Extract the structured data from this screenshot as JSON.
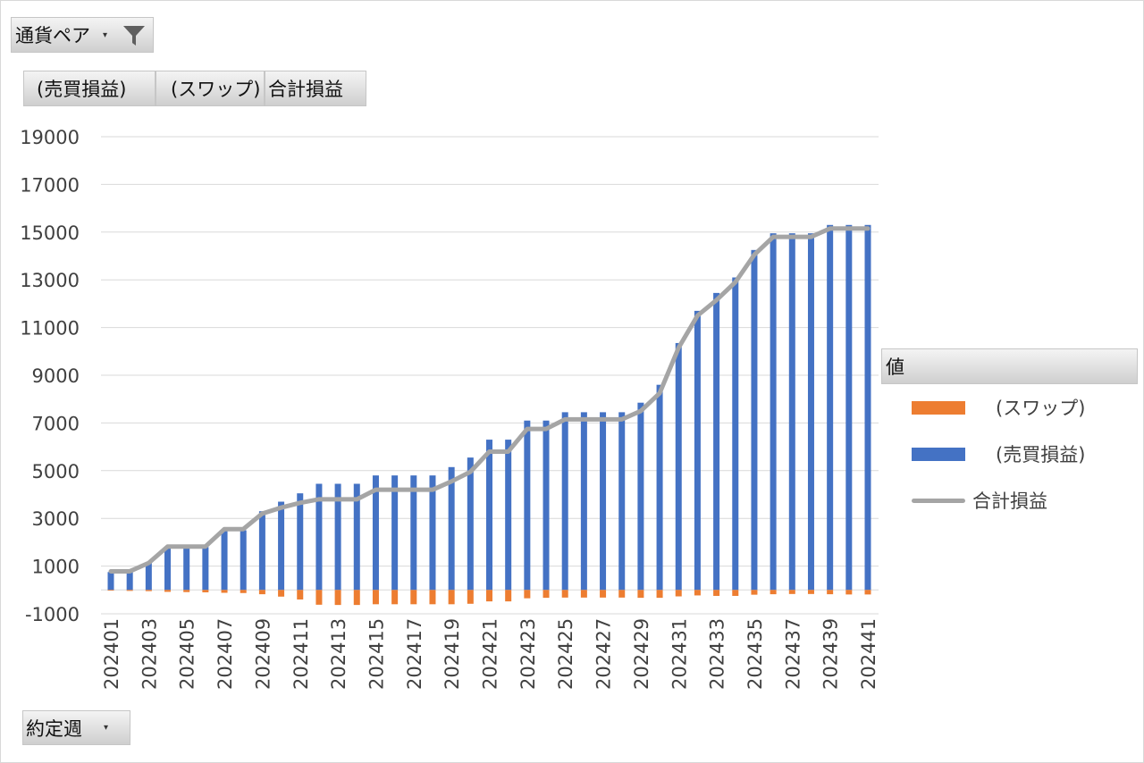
{
  "filter": {
    "label": "通貨ペア"
  },
  "column_fields": [
    "(売買損益)",
    "(スワップ)",
    "合計損益"
  ],
  "axis_field": {
    "label": "約定週"
  },
  "legend": {
    "title": "値",
    "items": [
      {
        "label": "(スワップ)",
        "color": "#ed7d31",
        "kind": "bar"
      },
      {
        "label": "(売買損益)",
        "color": "#4472c4",
        "kind": "bar"
      },
      {
        "label": "合計損益",
        "color": "#a5a5a5",
        "kind": "line"
      }
    ]
  },
  "chart_data": {
    "type": "bar",
    "stacked": true,
    "ylim": [
      -1000,
      19000
    ],
    "yticks": [
      -1000,
      1000,
      3000,
      5000,
      7000,
      9000,
      11000,
      13000,
      15000,
      17000,
      19000
    ],
    "categories": [
      "202401",
      "202402",
      "202403",
      "202404",
      "202405",
      "202406",
      "202407",
      "202408",
      "202409",
      "202410",
      "202411",
      "202412",
      "202413",
      "202414",
      "202415",
      "202416",
      "202417",
      "202418",
      "202419",
      "202420",
      "202421",
      "202422",
      "202423",
      "202424",
      "202425",
      "202426",
      "202427",
      "202428",
      "202429",
      "202430",
      "202431",
      "202432",
      "202433",
      "202434",
      "202435",
      "202436",
      "202437",
      "202438",
      "202439",
      "202440",
      "202441"
    ],
    "xtick_labels": [
      "202401",
      "202403",
      "202405",
      "202407",
      "202409",
      "202411",
      "202413",
      "202415",
      "202417",
      "202419",
      "202421",
      "202423",
      "202425",
      "202427",
      "202429",
      "202431",
      "202433",
      "202435",
      "202437",
      "202439",
      "202441"
    ],
    "series": [
      {
        "name": "(売買損益)",
        "kind": "bar",
        "color": "#4472c4",
        "values": [
          750,
          750,
          1150,
          1800,
          1800,
          1800,
          2500,
          2500,
          3300,
          3700,
          4050,
          4450,
          4450,
          4450,
          4800,
          4800,
          4800,
          4800,
          5150,
          5550,
          6300,
          6300,
          7100,
          7100,
          7450,
          7450,
          7450,
          7450,
          7850,
          8600,
          10350,
          11700,
          12450,
          13100,
          14250,
          14950,
          14950,
          14950,
          15300,
          15300,
          15300
        ]
      },
      {
        "name": "(スワップ)",
        "kind": "bar",
        "color": "#ed7d31",
        "values": [
          -30,
          -40,
          -50,
          -80,
          -90,
          -100,
          -120,
          -130,
          -180,
          -280,
          -400,
          -620,
          -630,
          -630,
          -600,
          -600,
          -600,
          -600,
          -600,
          -580,
          -480,
          -480,
          -350,
          -330,
          -320,
          -320,
          -320,
          -320,
          -330,
          -330,
          -270,
          -230,
          -250,
          -250,
          -200,
          -180,
          -170,
          -170,
          -180,
          -190,
          -190
        ]
      },
      {
        "name": "合計損益",
        "kind": "line",
        "color": "#a5a5a5",
        "values": [
          780,
          780,
          1130,
          1820,
          1820,
          1820,
          2550,
          2550,
          3200,
          3450,
          3650,
          3800,
          3800,
          3800,
          4200,
          4200,
          4200,
          4200,
          4550,
          4950,
          5800,
          5800,
          6750,
          6750,
          7150,
          7150,
          7150,
          7150,
          7500,
          8250,
          10150,
          11500,
          12150,
          12900,
          14050,
          14800,
          14800,
          14800,
          15150,
          15150,
          15150
        ]
      }
    ]
  }
}
